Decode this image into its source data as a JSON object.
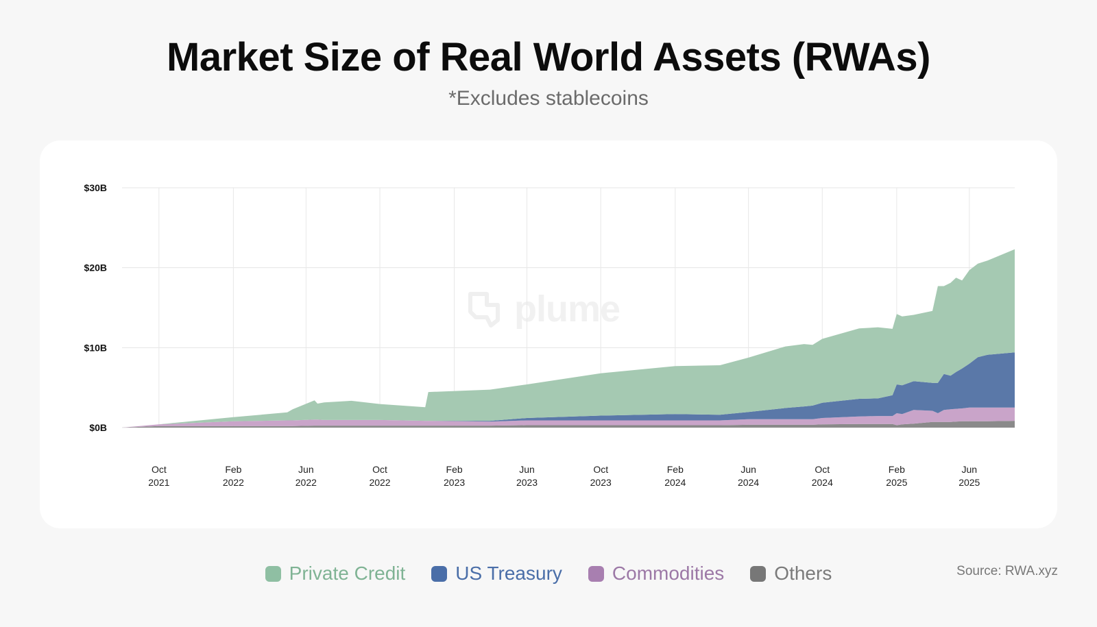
{
  "header": {
    "title": "Market Size of Real World Assets (RWAs)",
    "subtitle": "*Excludes stablecoins"
  },
  "watermark": {
    "text": "plume",
    "icon": "plume-logo-icon"
  },
  "legend": [
    {
      "label": "Private Credit",
      "color": "#8fbfa3",
      "text_color": "#7fb394"
    },
    {
      "label": "US Treasury",
      "color": "#4a6ea8",
      "text_color": "#4a6ea8"
    },
    {
      "label": "Commodities",
      "color": "#a87fb0",
      "text_color": "#9c78a6"
    },
    {
      "label": "Others",
      "color": "#777777",
      "text_color": "#7a7a7a"
    }
  ],
  "source": "Source: RWA.xyz",
  "chart_data": {
    "type": "area",
    "stacked": true,
    "xlabel": "",
    "ylabel": "",
    "ylim": [
      0,
      30
    ],
    "y_unit": "$B",
    "yticks": [
      "$0B",
      "$10B",
      "$20B",
      "$30B"
    ],
    "ytick_values": [
      0,
      10,
      20,
      30
    ],
    "grid": true,
    "legend_position": "bottom",
    "xlim": [
      "2021-08-01",
      "2025-08-15"
    ],
    "x_ticks": [
      {
        "month": "Oct",
        "year": "2021",
        "date": "2021-10-01"
      },
      {
        "month": "Feb",
        "year": "2022",
        "date": "2022-02-01"
      },
      {
        "month": "Jun",
        "year": "2022",
        "date": "2022-06-01"
      },
      {
        "month": "Oct",
        "year": "2022",
        "date": "2022-10-01"
      },
      {
        "month": "Feb",
        "year": "2023",
        "date": "2023-02-01"
      },
      {
        "month": "Jun",
        "year": "2023",
        "date": "2023-06-01"
      },
      {
        "month": "Oct",
        "year": "2023",
        "date": "2023-10-01"
      },
      {
        "month": "Feb",
        "year": "2024",
        "date": "2024-02-01"
      },
      {
        "month": "Jun",
        "year": "2024",
        "date": "2024-06-01"
      },
      {
        "month": "Oct",
        "year": "2024",
        "date": "2024-10-01"
      },
      {
        "month": "Feb",
        "year": "2025",
        "date": "2025-02-01"
      },
      {
        "month": "Jun",
        "year": "2025",
        "date": "2025-06-01"
      }
    ],
    "x": [
      "2021-08-01",
      "2021-10-01",
      "2022-02-01",
      "2022-05-01",
      "2022-05-10",
      "2022-06-15",
      "2022-06-20",
      "2022-07-01",
      "2022-08-15",
      "2022-10-01",
      "2022-12-15",
      "2022-12-20",
      "2023-04-01",
      "2023-06-01",
      "2023-10-01",
      "2024-02-01",
      "2024-04-15",
      "2024-06-01",
      "2024-08-01",
      "2024-09-01",
      "2024-09-15",
      "2024-10-01",
      "2024-12-01",
      "2025-01-01",
      "2025-01-25",
      "2025-02-01",
      "2025-02-10",
      "2025-03-01",
      "2025-04-01",
      "2025-04-10",
      "2025-04-20",
      "2025-05-01",
      "2025-05-10",
      "2025-05-20",
      "2025-06-01",
      "2025-06-15",
      "2025-07-01",
      "2025-08-15"
    ],
    "series": [
      {
        "name": "Others",
        "color": "#8a8a8a",
        "values": [
          0.0,
          0.2,
          0.2,
          0.2,
          0.2,
          0.25,
          0.25,
          0.25,
          0.25,
          0.25,
          0.25,
          0.25,
          0.25,
          0.3,
          0.3,
          0.3,
          0.3,
          0.35,
          0.35,
          0.35,
          0.35,
          0.4,
          0.45,
          0.45,
          0.45,
          0.3,
          0.4,
          0.5,
          0.7,
          0.7,
          0.7,
          0.7,
          0.75,
          0.8,
          0.8,
          0.8,
          0.8,
          0.85
        ]
      },
      {
        "name": "Commodities",
        "color": "#c9a4c9",
        "values": [
          0.0,
          0.2,
          0.6,
          0.7,
          0.7,
          0.75,
          0.75,
          0.7,
          0.7,
          0.7,
          0.6,
          0.6,
          0.5,
          0.6,
          0.6,
          0.6,
          0.6,
          0.7,
          0.7,
          0.7,
          0.7,
          0.8,
          0.95,
          1.0,
          1.0,
          1.5,
          1.3,
          1.7,
          1.4,
          1.1,
          1.5,
          1.6,
          1.6,
          1.6,
          1.7,
          1.7,
          1.7,
          1.65
        ]
      },
      {
        "name": "US Treasury",
        "color": "#5a78a8",
        "values": [
          0.0,
          0.0,
          0.0,
          0.0,
          0.0,
          0.0,
          0.0,
          0.0,
          0.0,
          0.0,
          0.0,
          0.0,
          0.1,
          0.3,
          0.6,
          0.8,
          0.7,
          0.9,
          1.4,
          1.6,
          1.7,
          1.9,
          2.2,
          2.2,
          2.6,
          3.6,
          3.6,
          3.6,
          3.5,
          3.8,
          4.5,
          4.2,
          4.6,
          5.0,
          5.5,
          6.3,
          6.6,
          6.9
        ]
      },
      {
        "name": "Private Credit",
        "color": "#a5c9b2",
        "values": [
          0.0,
          0.0,
          0.5,
          1.0,
          1.4,
          2.4,
          2.0,
          2.2,
          2.4,
          2.0,
          1.7,
          3.6,
          3.9,
          4.2,
          5.3,
          6.0,
          6.2,
          6.8,
          7.7,
          7.8,
          7.6,
          8.0,
          8.8,
          8.9,
          8.3,
          8.8,
          8.6,
          8.3,
          9.0,
          12.1,
          11.0,
          11.6,
          11.8,
          11.0,
          11.7,
          11.7,
          11.8,
          12.9
        ]
      }
    ]
  }
}
